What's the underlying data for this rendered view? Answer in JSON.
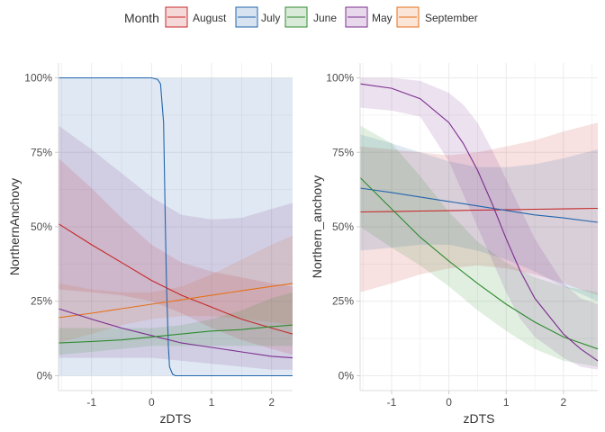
{
  "legend": {
    "title": "Month",
    "placement": "top",
    "entries": [
      {
        "label": "August",
        "color": "#c62828"
      },
      {
        "label": "July",
        "color": "#2166ac"
      },
      {
        "label": "June",
        "color": "#2e8b2e"
      },
      {
        "label": "May",
        "color": "#7b2d8e"
      },
      {
        "label": "September",
        "color": "#e6701a"
      }
    ]
  },
  "chart_data": [
    {
      "type": "line",
      "xlabel": "zDTS",
      "ylabel": "NorthernAnchovy",
      "xlim": [
        -1.55,
        2.35
      ],
      "ylim": [
        0,
        1
      ],
      "xticks": [
        -1,
        0,
        1,
        2
      ],
      "xtick_labels": [
        "-1",
        "0",
        "1",
        "2"
      ],
      "yticks": [
        0,
        0.25,
        0.5,
        0.75,
        1
      ],
      "ytick_labels": [
        "0%",
        "25%",
        "50%",
        "75%",
        "100%"
      ],
      "grid": true,
      "series": [
        {
          "name": "July",
          "color": "#2166ac",
          "x": [
            -1.55,
            -0.6,
            0,
            0.1,
            0.15,
            0.2,
            0.23,
            0.25,
            0.28,
            0.3,
            0.35,
            0.4,
            1,
            2,
            2.35
          ],
          "y": [
            1.0,
            1.0,
            1.0,
            0.995,
            0.98,
            0.85,
            0.5,
            0.3,
            0.1,
            0.03,
            0.005,
            0.0,
            0.0,
            0.0,
            0.0
          ],
          "lower": [
            0.0,
            0.0,
            0.0,
            0.0,
            0.0,
            0.0,
            0.0,
            0.0,
            0.0,
            0.0,
            0.0,
            0.0,
            0.0,
            0.0,
            0.0
          ],
          "upper": [
            1.0,
            1.0,
            1.0,
            1.0,
            1.0,
            1.0,
            1.0,
            1.0,
            1.0,
            1.0,
            1.0,
            1.0,
            1.0,
            1.0,
            1.0
          ]
        },
        {
          "name": "August",
          "color": "#c62828",
          "x": [
            -1.55,
            -1,
            -0.5,
            0,
            0.5,
            1,
            1.5,
            2,
            2.35
          ],
          "y": [
            0.51,
            0.44,
            0.38,
            0.32,
            0.27,
            0.23,
            0.19,
            0.16,
            0.14
          ],
          "lower": [
            0.29,
            0.28,
            0.27,
            0.25,
            0.21,
            0.16,
            0.12,
            0.09,
            0.07
          ],
          "upper": [
            0.73,
            0.63,
            0.53,
            0.44,
            0.38,
            0.35,
            0.33,
            0.31,
            0.3
          ]
        },
        {
          "name": "September",
          "color": "#e6701a",
          "x": [
            -1.55,
            -1,
            -0.5,
            0,
            0.5,
            1,
            1.5,
            2,
            2.35
          ],
          "y": [
            0.195,
            0.21,
            0.225,
            0.24,
            0.255,
            0.27,
            0.285,
            0.3,
            0.31
          ],
          "lower": [
            0.11,
            0.14,
            0.17,
            0.19,
            0.2,
            0.2,
            0.19,
            0.18,
            0.17
          ],
          "upper": [
            0.31,
            0.29,
            0.28,
            0.28,
            0.3,
            0.34,
            0.39,
            0.44,
            0.47
          ]
        },
        {
          "name": "May",
          "color": "#7b2d8e",
          "x": [
            -1.55,
            -1,
            -0.5,
            0,
            0.5,
            1,
            1.5,
            2,
            2.35
          ],
          "y": [
            0.225,
            0.19,
            0.16,
            0.135,
            0.11,
            0.095,
            0.08,
            0.065,
            0.06
          ],
          "lower": [
            0.06,
            0.06,
            0.06,
            0.06,
            0.05,
            0.04,
            0.03,
            0.02,
            0.02
          ],
          "upper": [
            0.84,
            0.76,
            0.68,
            0.6,
            0.54,
            0.525,
            0.53,
            0.56,
            0.58
          ]
        },
        {
          "name": "June",
          "color": "#2e8b2e",
          "x": [
            -1.55,
            -1,
            -0.5,
            0,
            0.5,
            1,
            1.5,
            2,
            2.35
          ],
          "y": [
            0.11,
            0.115,
            0.12,
            0.13,
            0.14,
            0.15,
            0.155,
            0.165,
            0.17
          ],
          "lower": [
            0.07,
            0.08,
            0.09,
            0.1,
            0.1,
            0.1,
            0.1,
            0.1,
            0.1
          ],
          "upper": [
            0.16,
            0.16,
            0.16,
            0.16,
            0.17,
            0.19,
            0.22,
            0.26,
            0.28
          ]
        }
      ]
    },
    {
      "type": "line",
      "xlabel": "zDTS",
      "ylabel": "Northern_anchovy",
      "xlim": [
        -1.55,
        2.6
      ],
      "ylim": [
        0,
        1
      ],
      "xticks": [
        -1,
        0,
        1,
        2
      ],
      "xtick_labels": [
        "-1",
        "0",
        "1",
        "2"
      ],
      "yticks": [
        0,
        0.25,
        0.5,
        0.75,
        1
      ],
      "ytick_labels": [
        "0%",
        "25%",
        "50%",
        "75%",
        "100%"
      ],
      "grid": true,
      "series": [
        {
          "name": "August",
          "color": "#c62828",
          "x": [
            -1.55,
            -1,
            -0.5,
            0,
            0.5,
            1,
            1.5,
            2,
            2.6
          ],
          "y": [
            0.55,
            0.551,
            0.553,
            0.554,
            0.556,
            0.557,
            0.559,
            0.56,
            0.562
          ],
          "lower": [
            0.28,
            0.31,
            0.34,
            0.36,
            0.37,
            0.36,
            0.34,
            0.31,
            0.27
          ],
          "upper": [
            0.77,
            0.76,
            0.75,
            0.74,
            0.75,
            0.77,
            0.79,
            0.82,
            0.85
          ]
        },
        {
          "name": "July",
          "color": "#2166ac",
          "x": [
            -1.55,
            -1,
            -0.5,
            0,
            0.5,
            1,
            1.5,
            2,
            2.6
          ],
          "y": [
            0.63,
            0.615,
            0.6,
            0.585,
            0.57,
            0.555,
            0.54,
            0.53,
            0.515
          ],
          "lower": [
            0.42,
            0.43,
            0.44,
            0.44,
            0.42,
            0.39,
            0.35,
            0.3,
            0.25
          ],
          "upper": [
            0.81,
            0.78,
            0.75,
            0.72,
            0.7,
            0.7,
            0.71,
            0.73,
            0.76
          ]
        },
        {
          "name": "June",
          "color": "#2e8b2e",
          "x": [
            -1.55,
            -1,
            -0.5,
            0,
            0.5,
            1,
            1.5,
            2,
            2.6
          ],
          "y": [
            0.665,
            0.56,
            0.465,
            0.385,
            0.31,
            0.24,
            0.18,
            0.13,
            0.09
          ],
          "lower": [
            0.5,
            0.43,
            0.37,
            0.3,
            0.22,
            0.15,
            0.09,
            0.05,
            0.03
          ],
          "upper": [
            0.84,
            0.78,
            0.67,
            0.55,
            0.45,
            0.38,
            0.33,
            0.3,
            0.28
          ]
        },
        {
          "name": "May",
          "color": "#7b2d8e",
          "x": [
            -1.55,
            -1,
            -0.5,
            0,
            0.25,
            0.5,
            0.75,
            1,
            1.25,
            1.5,
            2,
            2.3,
            2.6
          ],
          "y": [
            0.98,
            0.965,
            0.93,
            0.85,
            0.78,
            0.69,
            0.58,
            0.46,
            0.35,
            0.26,
            0.14,
            0.09,
            0.05
          ],
          "lower": [
            0.9,
            0.89,
            0.87,
            0.72,
            0.61,
            0.5,
            0.39,
            0.28,
            0.19,
            0.13,
            0.06,
            0.03,
            0.02
          ],
          "upper": [
            1.0,
            1.0,
            0.99,
            0.95,
            0.91,
            0.85,
            0.76,
            0.66,
            0.56,
            0.46,
            0.31,
            0.26,
            0.24
          ]
        }
      ]
    }
  ]
}
